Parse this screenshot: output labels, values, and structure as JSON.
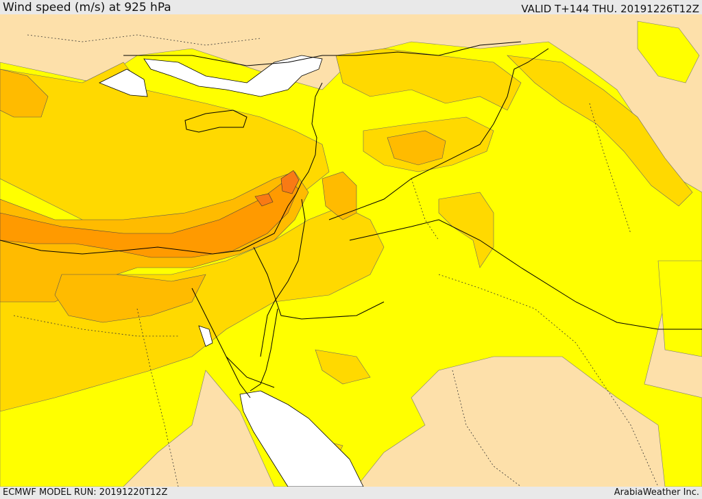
{
  "header": {
    "title": "Wind speed (m/s) at 925 hPa",
    "valid": "VALID T+144 THU. 20191226T12Z"
  },
  "footer": {
    "model_run": "ECMWF MODEL RUN: 20191220T12Z",
    "credit": "ArabiaWeather Inc."
  },
  "colors": {
    "land_light": "#fde0aa",
    "wind_yellow": "#ffff00",
    "wind_gold": "#ffd900",
    "wind_amber": "#ffbb00",
    "wind_orange": "#ff9a00",
    "wind_dark_orange": "#f97a14",
    "sea_white": "#ffffff",
    "border_black": "#000000"
  }
}
